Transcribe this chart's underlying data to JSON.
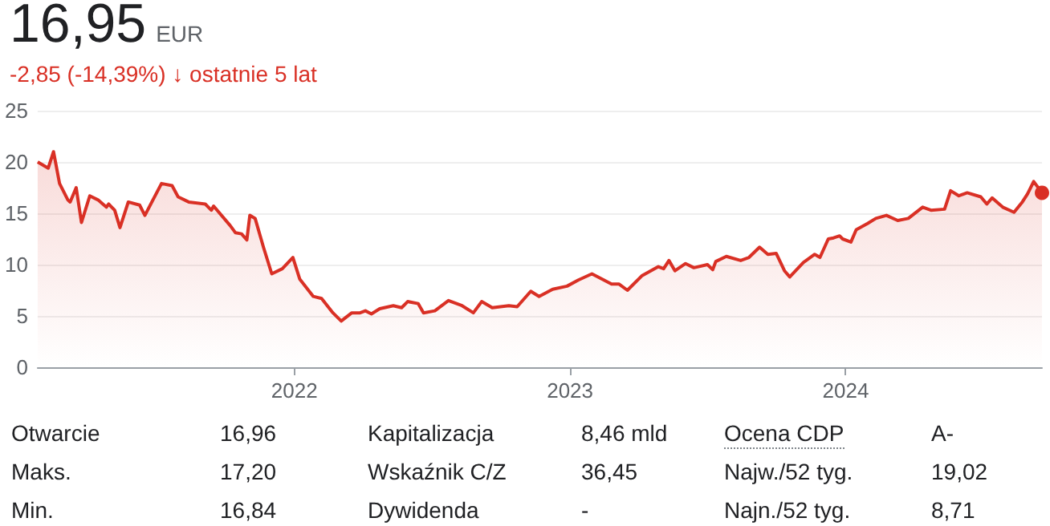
{
  "chart_data": {
    "type": "area",
    "title": "16,95",
    "subtitle": "-2,85 (-14,39%) ↓ ostatnie 5 lat",
    "annotations": [
      "EUR",
      "Otwarcie",
      "16,96",
      "Kapitalizacja",
      "8,46 mld",
      "Ocena CDP",
      "A-",
      "Maks.",
      "17,20",
      "Wskaźnik C/Z",
      "36,45",
      "Najw./52 tyg.",
      "19,02",
      "Min.",
      "16,84",
      "Dywidenda",
      "-",
      "Najn./52 tyg.",
      "8,71"
    ],
    "x": [
      "2021-01-26",
      "2021-02-09",
      "2021-02-16",
      "2021-02-24",
      "2021-03-07",
      "2021-03-10",
      "2021-03-18",
      "2021-03-25",
      "2021-04-05",
      "2021-04-16",
      "2021-04-27",
      "2021-04-30",
      "2021-05-08",
      "2021-05-15",
      "2021-05-26",
      "2021-06-10",
      "2021-06-17",
      "2021-07-09",
      "2021-07-23",
      "2021-07-31",
      "2021-08-14",
      "2021-09-05",
      "2021-09-13",
      "2021-09-16",
      "2021-10-08",
      "2021-10-15",
      "2021-10-23",
      "2021-10-30",
      "2021-11-03",
      "2021-11-10",
      "2021-11-21",
      "2021-12-02",
      "2021-12-16",
      "2021-12-30",
      "2022-01-08",
      "2022-01-26",
      "2022-02-06",
      "2022-02-21",
      "2022-03-04",
      "2022-03-18",
      "2022-03-29",
      "2022-04-05",
      "2022-04-13",
      "2022-04-24",
      "2022-05-12",
      "2022-05-23",
      "2022-05-31",
      "2022-06-14",
      "2022-06-21",
      "2022-07-06",
      "2022-07-24",
      "2022-08-11",
      "2022-08-26",
      "2022-09-06",
      "2022-09-20",
      "2022-10-12",
      "2022-10-23",
      "2022-11-10",
      "2022-11-21",
      "2022-12-09",
      "2022-12-28",
      "2023-01-12",
      "2023-01-30",
      "2023-02-25",
      "2023-03-07",
      "2023-03-18",
      "2023-04-06",
      "2023-04-28",
      "2023-05-05",
      "2023-05-12",
      "2023-05-20",
      "2023-06-03",
      "2023-06-14",
      "2023-07-02",
      "2023-07-09",
      "2023-07-13",
      "2023-07-27",
      "2023-08-15",
      "2023-08-26",
      "2023-09-09",
      "2023-09-20",
      "2023-10-01",
      "2023-10-12",
      "2023-10-19",
      "2023-11-06",
      "2023-11-21",
      "2023-11-28",
      "2023-12-09",
      "2023-12-16",
      "2023-12-24",
      "2023-12-28",
      "2024-01-08",
      "2024-01-15",
      "2024-01-30",
      "2024-02-10",
      "2024-02-24",
      "2024-03-10",
      "2024-03-24",
      "2024-04-12",
      "2024-04-23",
      "2024-05-11",
      "2024-05-19",
      "2024-05-30",
      "2024-06-10",
      "2024-06-28",
      "2024-07-06",
      "2024-07-13",
      "2024-07-27",
      "2024-08-11",
      "2024-08-22",
      "2024-08-29",
      "2024-09-06",
      "2024-09-17"
    ],
    "series": [
      {
        "color": "#d93025",
        "values": [
          20.0,
          19.4,
          21.0,
          17.9,
          16.3,
          16.1,
          17.5,
          14.1,
          16.7,
          16.3,
          15.6,
          15.9,
          15.3,
          13.6,
          16.1,
          15.8,
          14.8,
          17.9,
          17.7,
          16.6,
          16.1,
          15.9,
          15.3,
          15.7,
          13.8,
          13.1,
          13.0,
          12.4,
          14.8,
          14.5,
          11.7,
          9.1,
          9.6,
          10.7,
          8.6,
          6.9,
          6.7,
          5.3,
          4.5,
          5.3,
          5.3,
          5.5,
          5.2,
          5.7,
          6.0,
          5.8,
          6.4,
          6.2,
          5.3,
          5.5,
          6.5,
          6.0,
          5.3,
          6.4,
          5.8,
          6.0,
          5.9,
          7.4,
          6.9,
          7.6,
          7.9,
          8.5,
          9.1,
          8.1,
          8.1,
          7.5,
          8.9,
          9.8,
          9.6,
          10.4,
          9.4,
          10.1,
          9.7,
          10.0,
          9.5,
          10.3,
          10.8,
          10.4,
          10.7,
          11.7,
          11.0,
          11.1,
          9.4,
          8.8,
          10.2,
          11.0,
          10.7,
          12.5,
          12.6,
          12.8,
          12.5,
          12.2,
          13.4,
          14.0,
          14.5,
          14.8,
          14.3,
          14.5,
          15.6,
          15.3,
          15.4,
          17.2,
          16.7,
          17.0,
          16.6,
          15.9,
          16.5,
          15.6,
          15.1,
          16.1,
          16.9,
          18.1,
          17.0
        ]
      }
    ],
    "xlim": [
      "2021-01-26",
      "2024-09-17"
    ],
    "xticks": [
      {
        "value": "2022-01-01",
        "label": "2022"
      },
      {
        "value": "2023-01-01",
        "label": "2023"
      },
      {
        "value": "2024-01-01",
        "label": "2024"
      }
    ],
    "ylim": [
      0,
      25
    ],
    "yticks": [
      0,
      5,
      10,
      15,
      20,
      25
    ],
    "grid": "y",
    "marker": "none",
    "line_style": "solid"
  }
}
